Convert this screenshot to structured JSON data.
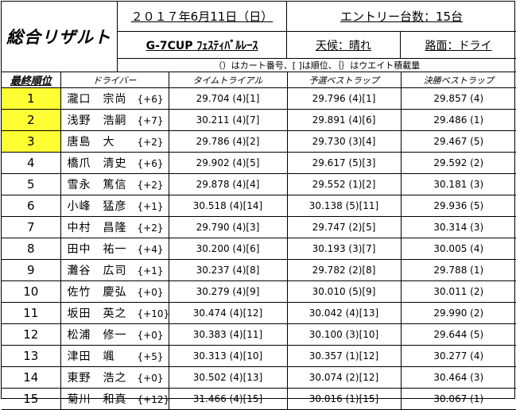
{
  "header": {
    "title": "総合リザルト",
    "date": "２０１７年6月11日（日）",
    "entry": "エントリー台数：15台",
    "event": "G-7CUP ﾌｪｽﾃｨﾊﾞﾙﾚｰｽ",
    "weather": "天候：晴れ",
    "road": "路面：ドライ",
    "legend": "（）はカート番号、[ ]は順位、｛｝はウエイト積載量"
  },
  "columns": [
    "最終順位",
    "ドライバー",
    "タイムトライアル",
    "予選ベストラップ",
    "決勝ベストラップ"
  ],
  "highlight_color": "#ffff33",
  "rows": [
    {
      "pos": "1",
      "name": "瀧口　宗尚",
      "weight": "{+6}",
      "tt": "29.704 (4)[1]",
      "qual": "29.796 (4)[1]",
      "final": "29.857 (4)"
    },
    {
      "pos": "2",
      "name": "浅野　浩嗣",
      "weight": "{+7}",
      "tt": "30.211 (4)[7]",
      "qual": "29.891 (4)[6]",
      "final": "29.486 (1)"
    },
    {
      "pos": "3",
      "name": "唐島　大",
      "weight": "{+2}",
      "tt": "29.786 (4)[2]",
      "qual": "29.730 (3)[4]",
      "final": "29.467 (5)"
    },
    {
      "pos": "4",
      "name": "橋爪　清史",
      "weight": "{+6}",
      "tt": "29.902 (4)[5]",
      "qual": "29.617 (5)[3]",
      "final": "29.592 (2)"
    },
    {
      "pos": "5",
      "name": "雪永　篤信",
      "weight": "{+2}",
      "tt": "29.878 (4)[4]",
      "qual": "29.552 (1)[2]",
      "final": "30.181 (3)"
    },
    {
      "pos": "6",
      "name": "小峰　猛彦",
      "weight": "{+1}",
      "tt": "30.518 (4)[14]",
      "qual": "30.138 (5)[11]",
      "final": "29.936 (5)"
    },
    {
      "pos": "7",
      "name": "中村　昌隆",
      "weight": "{+2}",
      "tt": "29.790 (4)[3]",
      "qual": "29.747 (2)[5]",
      "final": "30.314 (3)"
    },
    {
      "pos": "8",
      "name": "田中　祐一",
      "weight": "{+4}",
      "tt": "30.200 (4)[6]",
      "qual": "30.193 (3)[7]",
      "final": "30.005 (4)"
    },
    {
      "pos": "9",
      "name": "灘谷　広司",
      "weight": "{+1}",
      "tt": "30.237 (4)[8]",
      "qual": "29.782 (2)[8]",
      "final": "29.788 (1)"
    },
    {
      "pos": "10",
      "name": "佐竹　慶弘",
      "weight": "{+0}",
      "tt": "30.279 (4)[9]",
      "qual": "30.010 (5)[9]",
      "final": "30.011 (2)"
    },
    {
      "pos": "11",
      "name": "坂田　英之",
      "weight": "{+10}",
      "tt": "30.474 (4)[12]",
      "qual": "30.042 (4)[13]",
      "final": "29.990 (2)"
    },
    {
      "pos": "12",
      "name": "松浦　修一",
      "weight": "{+0}",
      "tt": "30.383 (4)[11]",
      "qual": "30.100 (3)[10]",
      "final": "29.644 (5)"
    },
    {
      "pos": "13",
      "name": "津田　颯",
      "weight": "{+5}",
      "tt": "30.313 (4)[10]",
      "qual": "30.357 (1)[12]",
      "final": "30.277 (4)"
    },
    {
      "pos": "14",
      "name": "東野　浩之",
      "weight": "{+0}",
      "tt": "30.502 (4)[13]",
      "qual": "30.074 (2)[12]",
      "final": "30.464 (3)"
    },
    {
      "pos": "15",
      "name": "菊川　和真",
      "weight": "{+12}",
      "tt": "31.466 (4)[15]",
      "qual": "30.016 (1)[15]",
      "final": "30.067 (1)"
    }
  ]
}
